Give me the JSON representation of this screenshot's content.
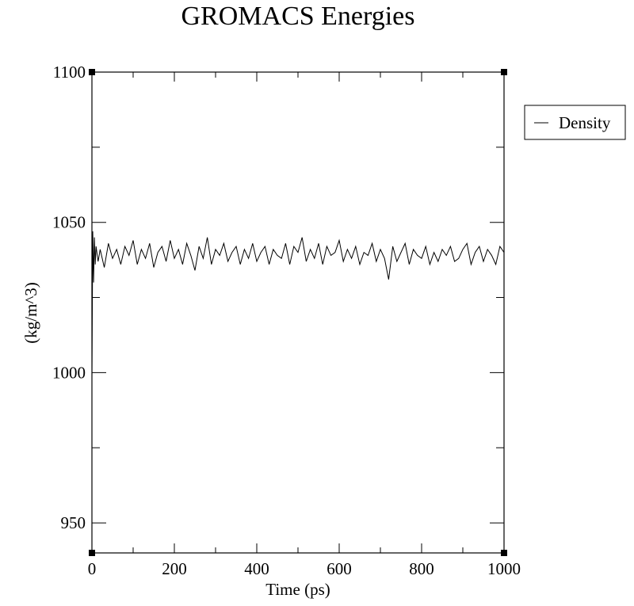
{
  "chart_data": {
    "type": "line",
    "title": "GROMACS Energies",
    "xlabel": "Time (ps)",
    "ylabel": "(kg/m^3)",
    "xlim": [
      0,
      1000
    ],
    "ylim": [
      940,
      1100
    ],
    "x_major_ticks": [
      "0",
      "200",
      "400",
      "600",
      "800",
      "1000"
    ],
    "y_major_ticks": [
      "950",
      "1000",
      "1050",
      "1100"
    ],
    "grid": false,
    "legend": {
      "placement": "outside-right",
      "entries": [
        "Density"
      ]
    },
    "series": [
      {
        "name": "Density",
        "color": "#000000",
        "x": [
          0,
          2,
          4,
          6,
          8,
          10,
          15,
          20,
          30,
          40,
          50,
          60,
          70,
          80,
          90,
          100,
          110,
          120,
          130,
          140,
          150,
          160,
          170,
          180,
          190,
          200,
          210,
          220,
          230,
          240,
          250,
          260,
          270,
          280,
          290,
          300,
          310,
          320,
          330,
          340,
          350,
          360,
          370,
          380,
          390,
          400,
          410,
          420,
          430,
          440,
          450,
          460,
          470,
          480,
          490,
          500,
          510,
          520,
          530,
          540,
          550,
          560,
          570,
          580,
          590,
          600,
          610,
          620,
          630,
          640,
          650,
          660,
          670,
          680,
          690,
          700,
          710,
          720,
          730,
          740,
          750,
          760,
          770,
          780,
          790,
          800,
          810,
          820,
          830,
          840,
          850,
          860,
          870,
          880,
          890,
          900,
          910,
          920,
          930,
          940,
          950,
          960,
          970,
          980,
          990,
          1000
        ],
        "values": [
          998,
          1047,
          1030,
          1045,
          1036,
          1042,
          1037,
          1041,
          1035,
          1043,
          1038,
          1041,
          1036,
          1042,
          1039,
          1044,
          1036,
          1041,
          1038,
          1043,
          1035,
          1040,
          1042,
          1037,
          1044,
          1038,
          1041,
          1036,
          1043,
          1039,
          1034,
          1042,
          1038,
          1045,
          1036,
          1041,
          1039,
          1043,
          1037,
          1040,
          1042,
          1036,
          1041,
          1038,
          1043,
          1037,
          1040,
          1042,
          1036,
          1041,
          1039,
          1038,
          1043,
          1036,
          1042,
          1040,
          1045,
          1037,
          1041,
          1038,
          1043,
          1036,
          1042,
          1039,
          1040,
          1044,
          1037,
          1041,
          1038,
          1042,
          1036,
          1040,
          1039,
          1043,
          1037,
          1041,
          1038,
          1031,
          1042,
          1037,
          1040,
          1043,
          1036,
          1041,
          1039,
          1038,
          1042,
          1036,
          1040,
          1037,
          1041,
          1039,
          1042,
          1037,
          1038,
          1041,
          1043,
          1036,
          1040,
          1042,
          1037,
          1041,
          1039,
          1036,
          1042,
          1040
        ]
      }
    ]
  }
}
